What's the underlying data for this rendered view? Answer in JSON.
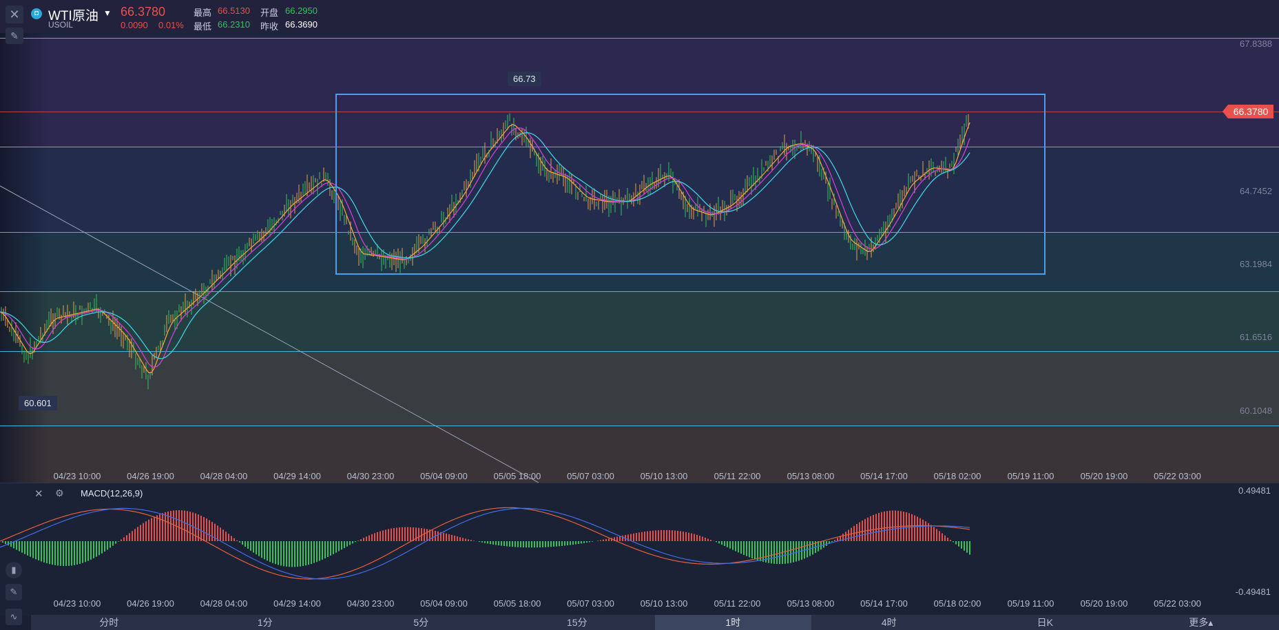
{
  "header": {
    "symbol_name": "WTI原油",
    "symbol_code": "USOIL",
    "last_price": "66.3780",
    "change": "0.0090",
    "change_pct": "0.01%",
    "stats": [
      {
        "label": "最高",
        "value": "66.5130",
        "color": "#e8514b"
      },
      {
        "label": "开盘",
        "value": "66.2950",
        "color": "#35c35b"
      },
      {
        "label": "最低",
        "value": "66.2310",
        "color": "#35c35b"
      },
      {
        "label": "昨收",
        "value": "66.3690",
        "color": "#ffffff"
      }
    ]
  },
  "main_chart": {
    "price_tag": "66.3780",
    "y_axis_labels": [
      "67.8388",
      "64.7452",
      "63.1984",
      "61.6516",
      "60.1048"
    ],
    "x_axis_labels": [
      "04/23 10:00",
      "04/26 19:00",
      "04/28 04:00",
      "04/29 14:00",
      "04/30 23:00",
      "05/04 09:00",
      "05/05 18:00",
      "05/07 03:00",
      "05/10 13:00",
      "05/11 22:00",
      "05/13 08:00",
      "05/14 17:00",
      "05/18 02:00",
      "05/19 11:00",
      "05/20 19:00",
      "05/22 03:00"
    ],
    "high_callout": "66.73",
    "low_callout": "60.601"
  },
  "macd": {
    "title": "MACD(12,26,9)",
    "y_top": "0.49481",
    "y_bottom": "-0.49481",
    "x_axis_labels": [
      "04/23 10:00",
      "04/26 19:00",
      "04/28 04:00",
      "04/29 14:00",
      "04/30 23:00",
      "05/04 09:00",
      "05/05 18:00",
      "05/07 03:00",
      "05/10 13:00",
      "05/11 22:00",
      "05/13 08:00",
      "05/14 17:00",
      "05/18 02:00",
      "05/19 11:00",
      "05/20 19:00",
      "05/22 03:00"
    ]
  },
  "tabs": [
    "分时",
    "1分",
    "5分",
    "15分",
    "1时",
    "4时",
    "日K",
    "更多▴"
  ],
  "active_tab": "1时",
  "colors": {
    "up": "#e8514b",
    "down": "#35c35b",
    "accent": "#3f97e8",
    "band_line": "#3fb8d8"
  }
}
